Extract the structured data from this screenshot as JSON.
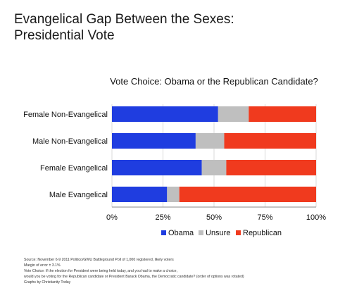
{
  "header": {
    "title_line1": "Evangelical Gap Between the Sexes:",
    "title_line2": "Presidential Vote"
  },
  "chart_data": {
    "type": "bar",
    "orientation": "horizontal",
    "stacked": true,
    "title": "Vote Choice: Obama or the Republican Candidate?",
    "categories": [
      "Female Non-Evangelical",
      "Male Non-Evangelical",
      "Female Evangelical",
      "Male Evangelical"
    ],
    "series": [
      {
        "name": "Obama",
        "color": "#1f3de0",
        "values": [
          52,
          41,
          44,
          27
        ]
      },
      {
        "name": "Unsure",
        "color": "#bfbfbf",
        "values": [
          15,
          14,
          12,
          6
        ]
      },
      {
        "name": "Republican",
        "color": "#f03a1e",
        "values": [
          33,
          45,
          44,
          67
        ]
      }
    ],
    "xlim": [
      0,
      100
    ],
    "x_ticks": [
      "0%",
      "25%",
      "50%",
      "75%",
      "100%"
    ],
    "x_tick_values": [
      0,
      25,
      50,
      75,
      100
    ],
    "grid": "vertical",
    "legend": "bottom"
  },
  "footnotes": {
    "source": "Source: November 6-9 2011 Politico/GWU Battleground Poll of 1,000 registered, likely voters",
    "margin": "Margin of error ± 3.1%",
    "question": "Vote Choice: If the election for President were being held today, and you had to make a choice,",
    "question_cont": "would you be voting for the Republican candidate or  President Barack Obama, the Democratic candidate? (order of options was rotated)",
    "credit": "Graphs by Christianity Today"
  }
}
